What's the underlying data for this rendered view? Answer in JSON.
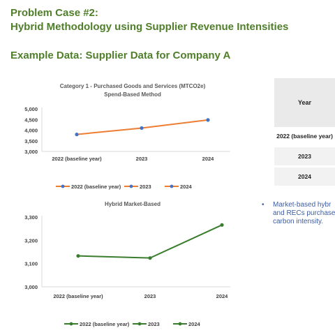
{
  "header": {
    "line1": "Problem Case #2:",
    "line2": "Hybrid Methodology using Supplier Revenue Intensities",
    "subtitle": "Example Data: Supplier Data for Company A"
  },
  "chart_data": [
    {
      "type": "line",
      "title": "Category 1 - Purchased Goods and Services (MTCO2e)",
      "subtitle": "Spend-Based Method",
      "categories": [
        "2022 (baseline year)",
        "2023",
        "2024"
      ],
      "values": [
        3800,
        4100,
        4480
      ],
      "ylim": [
        3000,
        5000
      ],
      "yticks": [
        3000,
        3500,
        4000,
        4500,
        5000
      ],
      "ytick_labels": [
        "3,000",
        "3,500",
        "4,000",
        "4,500",
        "5,000"
      ],
      "line_color": "#ed7d31",
      "marker_color": "#4472c4",
      "legend": [
        "2022 (baseline year)",
        "2023",
        "2024"
      ],
      "legend_position": "bottom",
      "grid": false
    },
    {
      "type": "line",
      "title": "Hybrid Market-Based",
      "categories": [
        "2022 (baseline year)",
        "2023",
        "2024"
      ],
      "values": [
        3133,
        3124,
        3266
      ],
      "ylim": [
        3000,
        3300
      ],
      "yticks": [
        3000,
        3100,
        3200,
        3300
      ],
      "ytick_labels": [
        "3,000",
        "3,100",
        "3,200",
        "3,300"
      ],
      "line_color": "#3a7d2e",
      "marker_color": "#3a7d2e",
      "legend": [
        "2022 (baseline year)",
        "2023",
        "2024"
      ],
      "legend_position": "bottom",
      "grid": false
    }
  ],
  "table": {
    "header": "Year",
    "rows": [
      "2022 (baseline year)",
      "2023",
      "2024"
    ]
  },
  "bullet": {
    "symbol": "•",
    "lines": [
      "Market-based hybr",
      "and RECs purchase",
      "carbon intensity."
    ]
  }
}
